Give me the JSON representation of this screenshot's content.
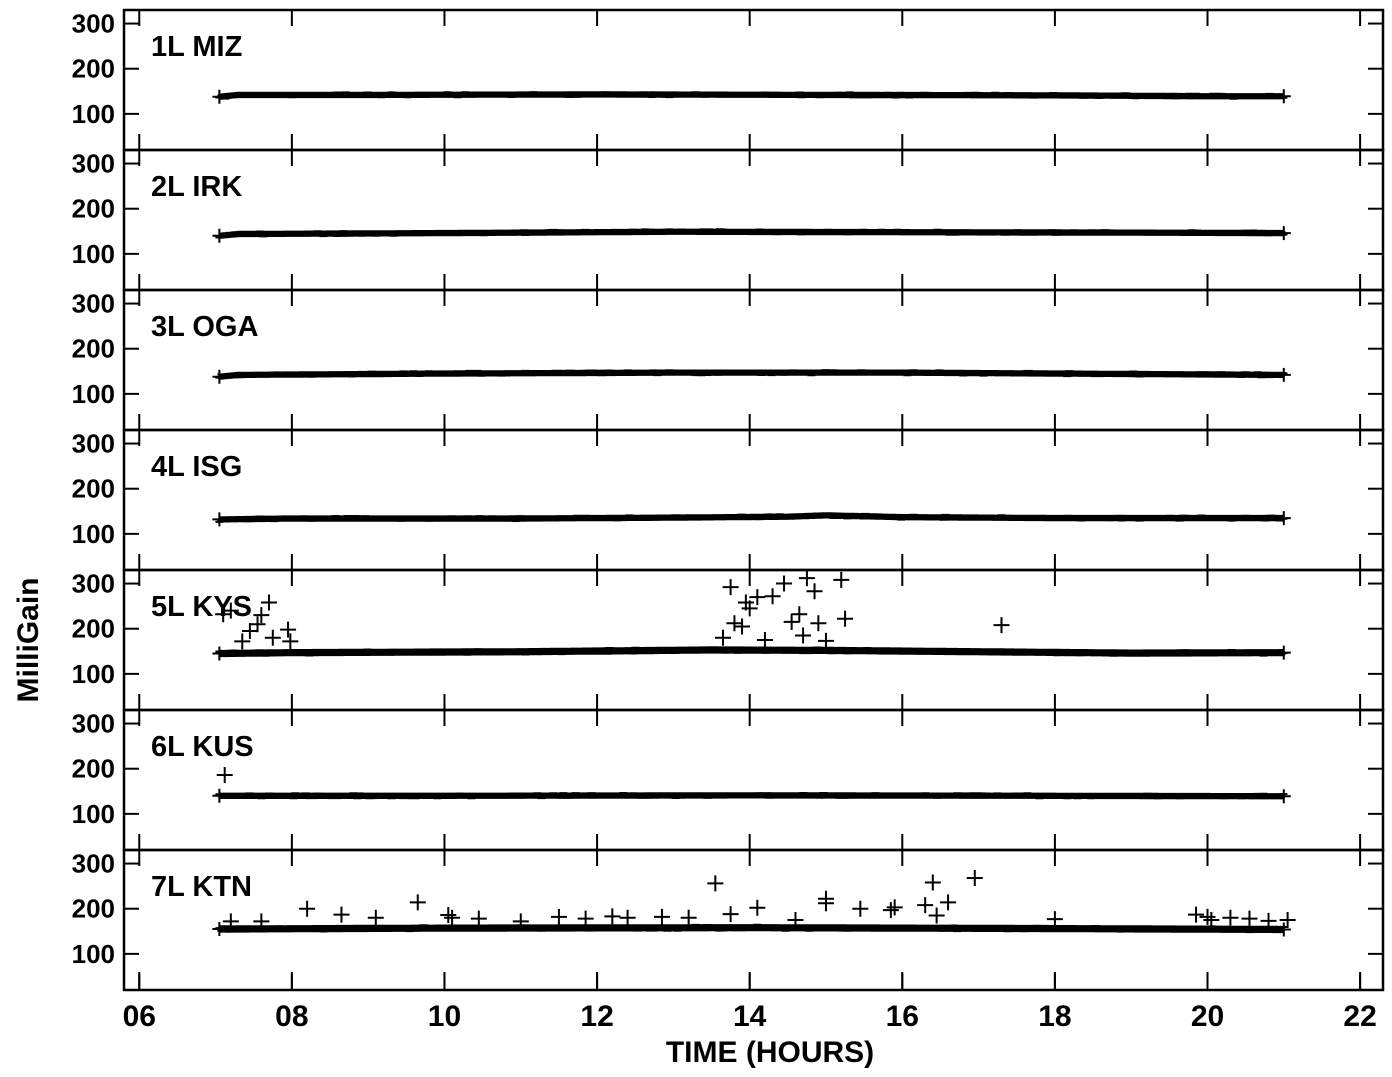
{
  "chart_data": {
    "type": "scatter",
    "title": "",
    "xlabel": "TIME (HOURS)",
    "ylabel": "MilliGain",
    "xlim": [
      5.8,
      22.3
    ],
    "x_ticks": [
      "06",
      "08",
      "10",
      "12",
      "14",
      "16",
      "18",
      "20",
      "22"
    ],
    "x_tick_values": [
      6,
      8,
      10,
      12,
      14,
      16,
      18,
      20,
      22
    ],
    "y_ticks": [
      300,
      200,
      100
    ],
    "ylim": [
      20,
      330
    ],
    "marker": "+",
    "color": "#000000",
    "grid": false,
    "panels": [
      {
        "name": "1L MIZ",
        "baseline": [
          [
            7.05,
            138
          ],
          [
            7.3,
            142
          ],
          [
            9,
            142
          ],
          [
            12,
            143
          ],
          [
            15,
            142
          ],
          [
            18,
            141
          ],
          [
            20,
            139
          ],
          [
            21.0,
            139
          ]
        ],
        "band_width": 14,
        "outliers": []
      },
      {
        "name": "2L IRK",
        "baseline": [
          [
            7.05,
            140
          ],
          [
            7.3,
            144
          ],
          [
            10,
            146
          ],
          [
            13,
            149
          ],
          [
            16,
            148
          ],
          [
            19,
            147
          ],
          [
            21.0,
            146
          ]
        ],
        "band_width": 14,
        "outliers": []
      },
      {
        "name": "3L OGA",
        "baseline": [
          [
            7.05,
            138
          ],
          [
            7.3,
            142
          ],
          [
            10,
            145
          ],
          [
            13,
            147
          ],
          [
            16,
            147
          ],
          [
            19,
            144
          ],
          [
            21.0,
            142
          ]
        ],
        "band_width": 14,
        "outliers": []
      },
      {
        "name": "4L ISG",
        "baseline": [
          [
            7.05,
            132
          ],
          [
            8,
            134
          ],
          [
            11,
            134
          ],
          [
            13,
            136
          ],
          [
            14.5,
            138
          ],
          [
            15,
            141
          ],
          [
            16,
            137
          ],
          [
            18,
            135
          ],
          [
            21.0,
            135
          ]
        ],
        "band_width": 14,
        "outliers": []
      },
      {
        "name": "5L KYS",
        "baseline": [
          [
            7.05,
            145
          ],
          [
            8,
            147
          ],
          [
            11,
            149
          ],
          [
            13.5,
            153
          ],
          [
            15,
            152
          ],
          [
            17,
            149
          ],
          [
            19,
            146
          ],
          [
            21.0,
            147
          ]
        ],
        "band_width": 16,
        "outliers": [
          [
            7.1,
            232
          ],
          [
            7.2,
            240
          ],
          [
            7.35,
            172
          ],
          [
            7.45,
            195
          ],
          [
            7.55,
            210
          ],
          [
            7.6,
            230
          ],
          [
            7.7,
            258
          ],
          [
            7.75,
            180
          ],
          [
            7.95,
            198
          ],
          [
            7.98,
            172
          ],
          [
            13.65,
            180
          ],
          [
            13.75,
            292
          ],
          [
            13.8,
            212
          ],
          [
            13.9,
            205
          ],
          [
            13.95,
            258
          ],
          [
            14.0,
            245
          ],
          [
            14.1,
            270
          ],
          [
            14.2,
            175
          ],
          [
            14.3,
            272
          ],
          [
            14.45,
            300
          ],
          [
            14.55,
            215
          ],
          [
            14.65,
            232
          ],
          [
            14.75,
            312
          ],
          [
            14.85,
            283
          ],
          [
            14.9,
            212
          ],
          [
            15.0,
            173
          ],
          [
            15.2,
            308
          ],
          [
            15.25,
            222
          ],
          [
            14.7,
            185
          ],
          [
            17.3,
            208
          ]
        ]
      },
      {
        "name": "6L KUS",
        "baseline": [
          [
            7.05,
            140
          ],
          [
            10,
            140
          ],
          [
            14,
            141
          ],
          [
            18,
            140
          ],
          [
            21.0,
            139
          ]
        ],
        "band_width": 14,
        "outliers": [
          [
            7.12,
            186
          ]
        ]
      },
      {
        "name": "7L KTN",
        "baseline": [
          [
            7.05,
            155
          ],
          [
            10,
            157
          ],
          [
            14,
            158
          ],
          [
            18,
            156
          ],
          [
            21.0,
            154
          ]
        ],
        "band_width": 16,
        "outliers": [
          [
            7.2,
            172
          ],
          [
            7.6,
            172
          ],
          [
            8.2,
            200
          ],
          [
            8.65,
            187
          ],
          [
            9.1,
            180
          ],
          [
            9.65,
            214
          ],
          [
            10.05,
            186
          ],
          [
            10.1,
            180
          ],
          [
            10.45,
            178
          ],
          [
            11.0,
            172
          ],
          [
            11.5,
            182
          ],
          [
            11.85,
            178
          ],
          [
            12.2,
            183
          ],
          [
            12.4,
            180
          ],
          [
            12.85,
            182
          ],
          [
            13.2,
            180
          ],
          [
            13.55,
            256
          ],
          [
            13.75,
            188
          ],
          [
            14.1,
            202
          ],
          [
            14.6,
            175
          ],
          [
            15.0,
            212
          ],
          [
            15.0,
            222
          ],
          [
            15.45,
            200
          ],
          [
            15.85,
            197
          ],
          [
            15.9,
            203
          ],
          [
            16.3,
            208
          ],
          [
            16.4,
            258
          ],
          [
            16.45,
            185
          ],
          [
            16.6,
            214
          ],
          [
            16.95,
            268
          ],
          [
            18.0,
            177
          ],
          [
            19.85,
            187
          ],
          [
            20.0,
            182
          ],
          [
            20.05,
            175
          ],
          [
            20.3,
            180
          ],
          [
            20.55,
            178
          ],
          [
            20.8,
            173
          ],
          [
            21.05,
            175
          ]
        ]
      }
    ]
  }
}
